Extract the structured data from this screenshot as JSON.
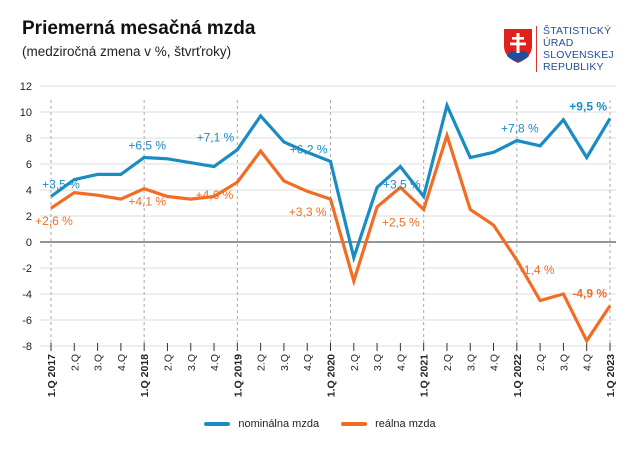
{
  "header": {
    "title": "Priemerná mesačná mzda",
    "subtitle": "(medziročná zmena v %, štvrťroky)"
  },
  "logo": {
    "text_lines": [
      "ŠTATISTICKÝ",
      "ÚRAD",
      "SLOVENSKEJ",
      "REPUBLIKY"
    ]
  },
  "colors": {
    "nominal": "#1a8cc4",
    "real": "#f26c23"
  },
  "chart_data": {
    "type": "line",
    "title": "Priemerná mesačná mzda",
    "subtitle": "(medziročná zmena v %, štvrťroky)",
    "ylim": [
      -8,
      12
    ],
    "yticks": [
      "12",
      "10",
      "8",
      "6",
      "4",
      "2",
      "0",
      "-2",
      "-4",
      "-6",
      "-8"
    ],
    "ytick_values": [
      12,
      10,
      8,
      6,
      4,
      2,
      0,
      -2,
      -4,
      -6,
      -8
    ],
    "categories": [
      "1.Q 2017",
      "2.Q",
      "3.Q",
      "4.Q",
      "1.Q 2018",
      "2.Q",
      "3.Q",
      "4.Q",
      "1.Q 2019",
      "2.Q",
      "3.Q",
      "4.Q",
      "1.Q 2020",
      "2.Q",
      "3.Q",
      "4.Q",
      "1.Q 2021",
      "2.Q",
      "3.Q",
      "4.Q",
      "1.Q 2022",
      "2.Q",
      "3.Q",
      "4.Q",
      "1.Q 2023"
    ],
    "series": [
      {
        "name": "nominálna mzda",
        "values": [
          3.5,
          4.8,
          5.2,
          5.2,
          6.5,
          6.4,
          6.1,
          5.8,
          7.1,
          9.7,
          7.7,
          6.9,
          6.2,
          -1.2,
          4.2,
          5.8,
          3.5,
          10.5,
          6.5,
          6.9,
          7.8,
          7.4,
          9.4,
          6.5,
          9.5
        ]
      },
      {
        "name": "reálna mzda",
        "values": [
          2.6,
          3.8,
          3.6,
          3.3,
          4.1,
          3.5,
          3.3,
          3.5,
          4.6,
          7.0,
          4.7,
          3.9,
          3.3,
          -3.0,
          2.7,
          4.2,
          2.5,
          8.2,
          2.5,
          1.3,
          -1.4,
          -4.5,
          -4.0,
          -7.6,
          -4.9
        ]
      }
    ],
    "annotations": [
      {
        "series": 0,
        "index": 0,
        "text": "+3,5 %",
        "pos": "above"
      },
      {
        "series": 0,
        "index": 4,
        "text": "+6,5 %",
        "pos": "above"
      },
      {
        "series": 0,
        "index": 8,
        "text": "+7,1 %",
        "pos": "above-left"
      },
      {
        "series": 0,
        "index": 12,
        "text": "+6,2 %",
        "pos": "above-left"
      },
      {
        "series": 0,
        "index": 16,
        "text": "+3,5 %",
        "pos": "above-left"
      },
      {
        "series": 0,
        "index": 20,
        "text": "+7,8 %",
        "pos": "above"
      },
      {
        "series": 0,
        "index": 24,
        "text": "+9,5 %",
        "pos": "above-left",
        "bold": true
      },
      {
        "series": 1,
        "index": 0,
        "text": "+2,6 %",
        "pos": "below"
      },
      {
        "series": 1,
        "index": 4,
        "text": "+4,1 %",
        "pos": "below"
      },
      {
        "series": 1,
        "index": 8,
        "text": "+4,6 %",
        "pos": "below-left"
      },
      {
        "series": 1,
        "index": 12,
        "text": "+3,3 %",
        "pos": "below-left"
      },
      {
        "series": 1,
        "index": 16,
        "text": "+2,5 %",
        "pos": "below-left"
      },
      {
        "series": 1,
        "index": 20,
        "text": "-1,4 %",
        "pos": "right"
      },
      {
        "series": 1,
        "index": 24,
        "text": "-4,9 %",
        "pos": "above-left",
        "bold": true
      }
    ],
    "grid": true,
    "legend": "bottom-center"
  }
}
